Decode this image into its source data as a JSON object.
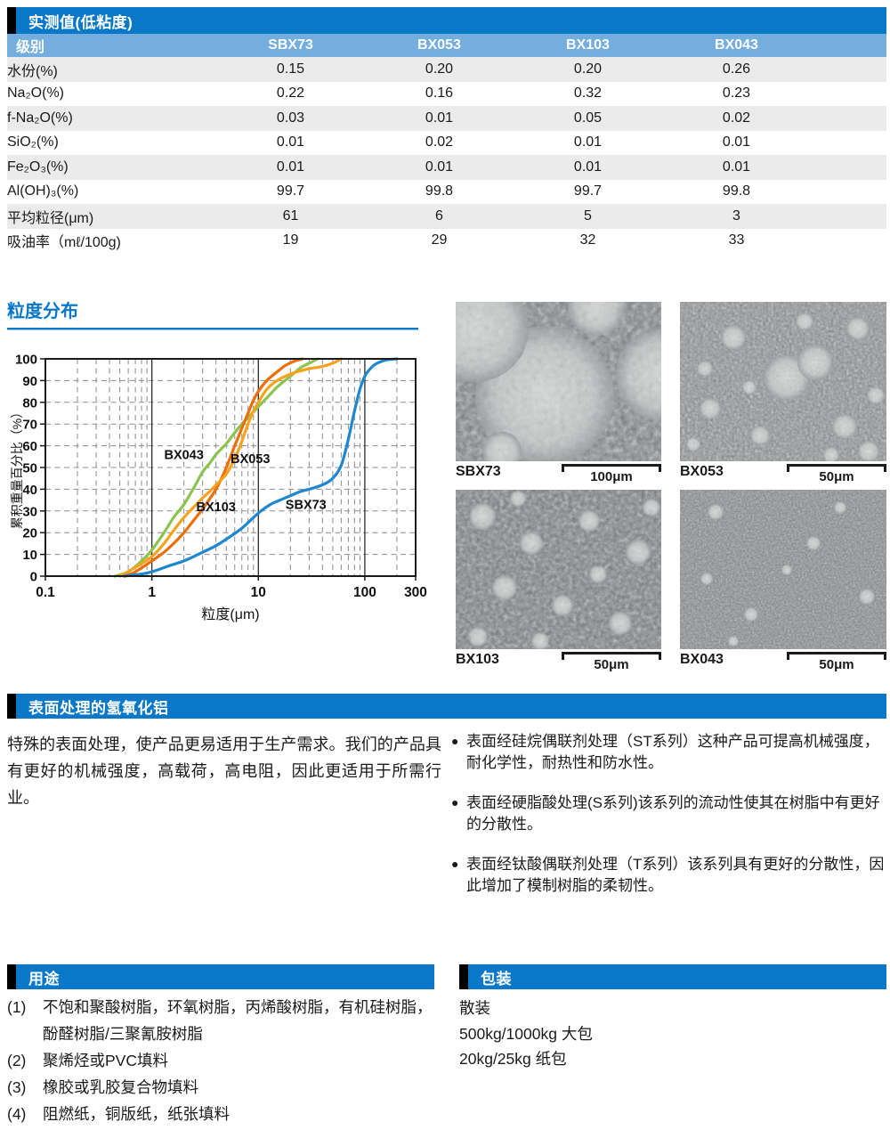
{
  "colors": {
    "primary_blue": "#0a78c8",
    "header_light_blue": "#74aede",
    "row_alt_gray": "#ebebeb",
    "accent_black": "#000000"
  },
  "table": {
    "title": "实测值(低粘度)",
    "columns": [
      "级别",
      "SBX73",
      "BX053",
      "BX103",
      "BX043"
    ],
    "rows": [
      {
        "label": "水份(%)",
        "values": [
          "0.15",
          "0.20",
          "0.20",
          "0.26"
        ]
      },
      {
        "label": "Na₂O(%)",
        "values": [
          "0.22",
          "0.16",
          "0.32",
          "0.23"
        ]
      },
      {
        "label": "f-Na₂O(%)",
        "values": [
          "0.03",
          "0.01",
          "0.05",
          "0.02"
        ]
      },
      {
        "label": "SiO₂(%)",
        "values": [
          "0.01",
          "0.02",
          "0.01",
          "0.01"
        ]
      },
      {
        "label": "Fe₂O₃(%)",
        "values": [
          "0.01",
          "0.01",
          "0.01",
          "0.01"
        ]
      },
      {
        "label": "Al(OH)₃(%)",
        "values": [
          "99.7",
          "99.8",
          "99.7",
          "99.8"
        ]
      },
      {
        "label": "平均粒径(μm)",
        "values": [
          "61",
          "6",
          "5",
          "3"
        ]
      },
      {
        "label": "吸油率（mℓ/100g)",
        "values": [
          "19",
          "29",
          "32",
          "33"
        ]
      }
    ]
  },
  "chart_data": {
    "type": "line",
    "title": "粒度分布",
    "xlabel": "粒度(μm)",
    "ylabel": "累积重量百分比（%）",
    "x_scale": "log",
    "xlim": [
      0.1,
      300
    ],
    "ylim": [
      0,
      100
    ],
    "x_ticks": [
      0.1,
      1,
      10,
      100,
      300
    ],
    "x_tick_labels": [
      "0.1",
      "1",
      "10",
      "100",
      "300"
    ],
    "y_tick_step": 10,
    "grid": "dashed",
    "series": [
      {
        "name": "BX043",
        "color": "#8dc450",
        "label_at": [
          2.0,
          56
        ],
        "points": [
          [
            0.45,
            0
          ],
          [
            0.6,
            2
          ],
          [
            0.8,
            7
          ],
          [
            1,
            12
          ],
          [
            1.3,
            20
          ],
          [
            1.6,
            27
          ],
          [
            2,
            33
          ],
          [
            2.5,
            41
          ],
          [
            3,
            48
          ],
          [
            3.5,
            52
          ],
          [
            4,
            56
          ],
          [
            5,
            61
          ],
          [
            6,
            66
          ],
          [
            7,
            70
          ],
          [
            8,
            73
          ],
          [
            10,
            78
          ],
          [
            12,
            82
          ],
          [
            15,
            87
          ],
          [
            20,
            92
          ],
          [
            25,
            96
          ],
          [
            30,
            98
          ],
          [
            36,
            100
          ]
        ]
      },
      {
        "name": "BX103",
        "color": "#ec6e08",
        "label_at": [
          4.0,
          32
        ],
        "points": [
          [
            0.55,
            0
          ],
          [
            0.7,
            2
          ],
          [
            1,
            7
          ],
          [
            1.3,
            11
          ],
          [
            1.6,
            15
          ],
          [
            2,
            20
          ],
          [
            2.5,
            26
          ],
          [
            3,
            31
          ],
          [
            4,
            40
          ],
          [
            5,
            50
          ],
          [
            6,
            60
          ],
          [
            7,
            68
          ],
          [
            8,
            75
          ],
          [
            9,
            81
          ],
          [
            10,
            85
          ],
          [
            12,
            90
          ],
          [
            15,
            94
          ],
          [
            18,
            97
          ],
          [
            22,
            99
          ],
          [
            26,
            100
          ]
        ]
      },
      {
        "name": "BX053",
        "color": "#f6a21c",
        "label_at": [
          8.4,
          54
        ],
        "points": [
          [
            0.5,
            0
          ],
          [
            0.7,
            4
          ],
          [
            1,
            9
          ],
          [
            1.3,
            15
          ],
          [
            1.6,
            21
          ],
          [
            2,
            27
          ],
          [
            2.5,
            32
          ],
          [
            3,
            36
          ],
          [
            3.5,
            39
          ],
          [
            4,
            42
          ],
          [
            5,
            47
          ],
          [
            6,
            54
          ],
          [
            7,
            62
          ],
          [
            8,
            70
          ],
          [
            9,
            76
          ],
          [
            10,
            80
          ],
          [
            12,
            86
          ],
          [
            15,
            90
          ],
          [
            20,
            93
          ],
          [
            25,
            94.5
          ],
          [
            30,
            95.5
          ],
          [
            40,
            96.5
          ],
          [
            50,
            98
          ],
          [
            60,
            100
          ]
        ]
      },
      {
        "name": "SBX73",
        "color": "#1d87cf",
        "label_at": [
          28,
          33
        ],
        "points": [
          [
            0.55,
            0
          ],
          [
            0.8,
            1
          ],
          [
            1,
            2
          ],
          [
            1.5,
            5
          ],
          [
            2,
            7
          ],
          [
            3,
            11
          ],
          [
            4,
            14
          ],
          [
            5,
            17
          ],
          [
            7,
            22
          ],
          [
            10,
            29
          ],
          [
            13,
            33
          ],
          [
            16,
            35
          ],
          [
            20,
            37
          ],
          [
            25,
            39
          ],
          [
            30,
            40
          ],
          [
            40,
            42
          ],
          [
            50,
            45
          ],
          [
            60,
            51
          ],
          [
            70,
            63
          ],
          [
            80,
            76
          ],
          [
            90,
            86
          ],
          [
            100,
            92
          ],
          [
            115,
            96
          ],
          [
            130,
            98
          ],
          [
            160,
            99.5
          ],
          [
            200,
            100
          ]
        ]
      }
    ]
  },
  "sem_images": [
    {
      "label": "SBX73",
      "scale": "100μm"
    },
    {
      "label": "BX053",
      "scale": "50μm"
    },
    {
      "label": "BX103",
      "scale": "50μm"
    },
    {
      "label": "BX043",
      "scale": "50μm"
    }
  ],
  "surface_section": {
    "title": "表面处理的氢氧化铝",
    "paragraph": "特殊的表面处理，使产品更易适用于生产需求。我们的产品具有更好的机械强度，高载荷，高电阻，因此更适用于所需行业。",
    "bullets": [
      {
        "marker": "●",
        "text": "表面经硅烷偶联剂处理（ST系列）这种产品可提高机械强度，耐化学性，耐热性和防水性。"
      },
      {
        "marker": "●",
        "text": "表面经硬脂酸处理(S系列)该系列的流动性使其在树脂中有更好的分散性。"
      },
      {
        "marker": "●",
        "text": "表面经钛酸偶联剂处理（T系列）该系列具有更好的分散性，因此增加了模制树脂的柔韧性。"
      }
    ]
  },
  "applications": {
    "title": "用途",
    "items": [
      {
        "marker": "(1)",
        "text": "不饱和聚酸树脂，环氧树脂，丙烯酸树脂，有机硅树脂，酚醛树脂/三聚氰胺树脂"
      },
      {
        "marker": "(2)",
        "text": "聚烯烃或PVC填料"
      },
      {
        "marker": "(3)",
        "text": "橡胶或乳胶复合物填料"
      },
      {
        "marker": "(4)",
        "text": "阻燃纸，铜版纸，纸张填料"
      }
    ]
  },
  "packaging": {
    "title": "包装",
    "items": [
      "散装",
      "500kg/1000kg 大包",
      "20kg/25kg 纸包"
    ]
  }
}
